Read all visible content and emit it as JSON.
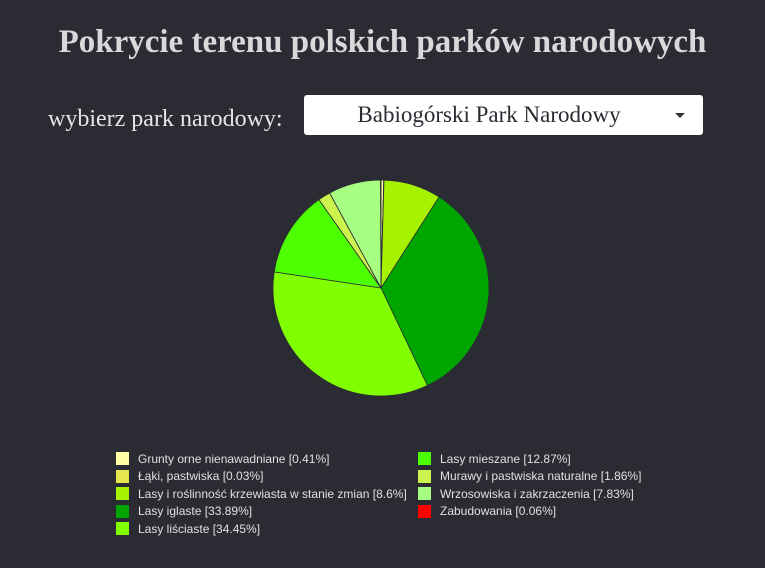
{
  "title": "Pokrycie terenu polskich parków narodowych",
  "selector": {
    "label": "wybierz park narodowy:",
    "value": "Babiogórski Park Narodowy"
  },
  "chart_data": {
    "type": "pie",
    "slices": [
      {
        "label": "Grunty orne nienawadniane",
        "value": 0.41,
        "color": "#ffffa8"
      },
      {
        "label": "Łąki, pastwiska",
        "value": 0.03,
        "color": "#e6e64d"
      },
      {
        "label": "Lasy i roślinność krzewiasta w stanie zmian",
        "value": 8.6,
        "color": "#a6f200"
      },
      {
        "label": "Lasy iglaste",
        "value": 33.89,
        "color": "#00a600"
      },
      {
        "label": "Lasy liściaste",
        "value": 34.45,
        "color": "#80ff00"
      },
      {
        "label": "Lasy mieszane",
        "value": 12.87,
        "color": "#4dff00"
      },
      {
        "label": "Murawy i pastwiska naturalne",
        "value": 1.86,
        "color": "#ccf24d"
      },
      {
        "label": "Wrzosowiska i zakrzaczenia",
        "value": 7.83,
        "color": "#a6ff80"
      },
      {
        "label": "Zabudowania",
        "value": 0.06,
        "color": "#ff0000"
      }
    ],
    "legend_labels": [
      "Grunty orne nienawadniane [0.41%]",
      "Łąki, pastwiska [0.03%]",
      "Lasy i roślinność krzewiasta w stanie zmian [8.6%]",
      "Lasy iglaste [33.89%]",
      "Lasy liściaste [34.45%]",
      "Lasy mieszane [12.87%]",
      "Murawy i pastwiska naturalne [1.86%]",
      "Wrzosowiska i zakrzaczenia [7.83%]",
      "Zabudowania [0.06%]"
    ],
    "legend_placement": "bottom"
  }
}
